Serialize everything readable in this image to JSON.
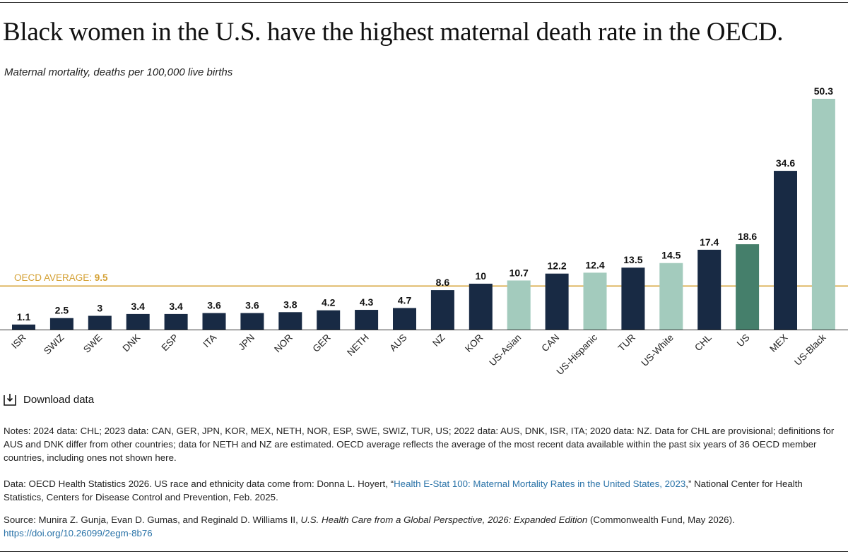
{
  "title": "Black women in the U.S. have the highest maternal death rate in the OECD.",
  "subtitle": "Maternal mortality, deaths per 100,000 live births",
  "download_label": "Download data",
  "colors": {
    "country": "#182a44",
    "us_group": "#a3cbbd",
    "us": "#457f6b",
    "average": "#d4a033",
    "axis": "#333333"
  },
  "chart_data": {
    "type": "bar",
    "categories": [
      "ISR",
      "SWIZ",
      "SWE",
      "DNK",
      "ESP",
      "ITA",
      "JPN",
      "NOR",
      "GER",
      "NETH",
      "AUS",
      "NZ",
      "KOR",
      "US-Asian",
      "CAN",
      "US-Hispanic",
      "TUR",
      "US-White",
      "CHL",
      "US",
      "MEX",
      "US-Black"
    ],
    "values": [
      1.1,
      2.5,
      3,
      3.4,
      3.4,
      3.6,
      3.6,
      3.8,
      4.2,
      4.3,
      4.7,
      8.6,
      10,
      10.7,
      12.2,
      12.4,
      13.5,
      14.5,
      17.4,
      18.6,
      34.6,
      50.3
    ],
    "value_labels": [
      "1.1",
      "2.5",
      "3",
      "3.4",
      "3.4",
      "3.6",
      "3.6",
      "3.8",
      "4.2",
      "4.3",
      "4.7",
      "8.6",
      "10",
      "10.7",
      "12.2",
      "12.4",
      "13.5",
      "14.5",
      "17.4",
      "18.6",
      "34.6",
      "50.3"
    ],
    "bar_groups": [
      "country",
      "country",
      "country",
      "country",
      "country",
      "country",
      "country",
      "country",
      "country",
      "country",
      "country",
      "country",
      "country",
      "us_group",
      "country",
      "us_group",
      "country",
      "us_group",
      "country",
      "us",
      "country",
      "us_group"
    ],
    "reference_line": {
      "label": "OECD AVERAGE:",
      "value": 9.5,
      "value_label": "9.5"
    },
    "ylim": [
      0,
      50.3
    ],
    "grid": false,
    "legend": "none"
  },
  "notes": {
    "notes_text": "Notes: 2024 data: CHL; 2023 data: CAN, GER, JPN, KOR, MEX, NETH, NOR, ESP, SWE, SWIZ, TUR, US; 2022 data: AUS, DNK, ISR, ITA; 2020 data: NZ. Data for CHL are provisional; definitions for AUS and DNK differ from other countries; data for NETH and NZ are estimated. OECD average reflects the average of the most recent data available within the past six years of 36 OECD member countries, including ones not shown here.",
    "data_prefix": "Data: OECD Health Statistics 2026. US race and ethnicity data come from: Donna L. Hoyert, “",
    "data_link": "Health E-Stat 100: Maternal Mortality Rates in the United States, 2023",
    "data_suffix": ",” National Center for Health Statistics, Centers for Disease Control and Prevention, Feb. 2025.",
    "source_prefix": "Source: Munira Z. Gunja, Evan D. Gumas, and Reginald D. Williams II, ",
    "source_title": "U.S. Health Care from a Global Perspective, 2026: Expanded Edition",
    "source_suffix": " (Commonwealth Fund, May 2026).",
    "source_doi": "https://doi.org/10.26099/2egm-8b76"
  }
}
